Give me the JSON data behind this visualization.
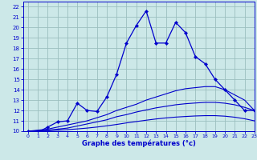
{
  "title": "Graphe des températures (°c)",
  "bg_color": "#cce8e8",
  "grid_color": "#9bbfbf",
  "line_color": "#0000cc",
  "xlim": [
    -0.5,
    23
  ],
  "ylim": [
    10,
    22.5
  ],
  "xticks": [
    0,
    1,
    2,
    3,
    4,
    5,
    6,
    7,
    8,
    9,
    10,
    11,
    12,
    13,
    14,
    15,
    16,
    17,
    18,
    19,
    20,
    21,
    22,
    23
  ],
  "yticks": [
    10,
    11,
    12,
    13,
    14,
    15,
    16,
    17,
    18,
    19,
    20,
    21,
    22
  ],
  "main_x": [
    0,
    1,
    2,
    3,
    4,
    5,
    6,
    7,
    8,
    9,
    10,
    11,
    12,
    13,
    14,
    15,
    16,
    17,
    18,
    19,
    20,
    21,
    22,
    23
  ],
  "main_y": [
    10,
    9.9,
    10.4,
    10.9,
    11.0,
    12.7,
    12.0,
    11.9,
    13.3,
    15.5,
    18.5,
    20.2,
    21.6,
    18.5,
    18.5,
    20.5,
    19.5,
    17.2,
    16.5,
    15.0,
    14.0,
    13.0,
    12.0,
    12.0
  ],
  "line2_x": [
    0,
    1,
    2,
    3,
    4,
    5,
    6,
    7,
    8,
    9,
    10,
    11,
    12,
    13,
    14,
    15,
    16,
    17,
    18,
    19,
    20,
    21,
    22,
    23
  ],
  "line2_y": [
    10.0,
    10.1,
    10.2,
    10.4,
    10.6,
    10.8,
    11.0,
    11.3,
    11.6,
    12.0,
    12.3,
    12.6,
    13.0,
    13.3,
    13.6,
    13.9,
    14.1,
    14.2,
    14.3,
    14.3,
    14.0,
    13.5,
    13.0,
    12.0
  ],
  "line3_x": [
    0,
    1,
    2,
    3,
    4,
    5,
    6,
    7,
    8,
    9,
    10,
    11,
    12,
    13,
    14,
    15,
    16,
    17,
    18,
    19,
    20,
    21,
    22,
    23
  ],
  "line3_y": [
    10.0,
    10.05,
    10.1,
    10.2,
    10.3,
    10.5,
    10.7,
    10.9,
    11.1,
    11.4,
    11.6,
    11.85,
    12.05,
    12.25,
    12.4,
    12.55,
    12.65,
    12.72,
    12.78,
    12.78,
    12.7,
    12.55,
    12.3,
    12.0
  ],
  "line4_x": [
    0,
    1,
    2,
    3,
    4,
    5,
    6,
    7,
    8,
    9,
    10,
    11,
    12,
    13,
    14,
    15,
    16,
    17,
    18,
    19,
    20,
    21,
    22,
    23
  ],
  "line4_y": [
    10.0,
    10.02,
    10.05,
    10.1,
    10.15,
    10.22,
    10.3,
    10.4,
    10.52,
    10.65,
    10.8,
    10.93,
    11.06,
    11.18,
    11.28,
    11.36,
    11.42,
    11.47,
    11.5,
    11.5,
    11.45,
    11.35,
    11.2,
    11.0
  ]
}
